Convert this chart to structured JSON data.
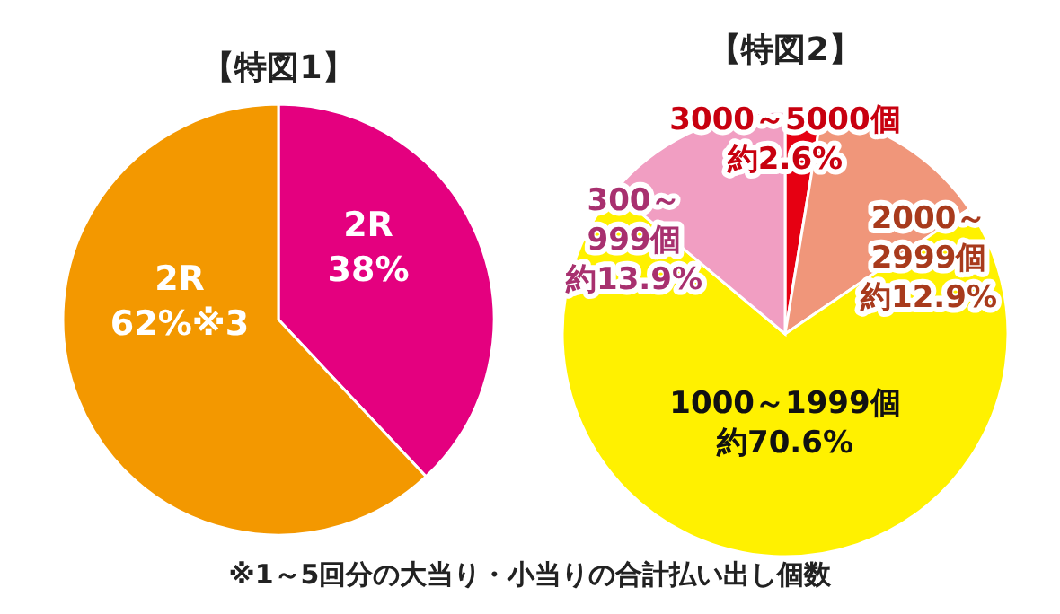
{
  "chart_data": [
    {
      "type": "pie",
      "title": "【特図1】",
      "categories": [
        "2R",
        "2R"
      ],
      "values": [
        38,
        62
      ],
      "colors": [
        "#e4007f",
        "#f39800"
      ],
      "value_labels": [
        "38%",
        "62%※3"
      ]
    },
    {
      "type": "pie",
      "title": "【特図2】",
      "categories": [
        "3000～5000個",
        "2000～2999個",
        "1000～1999個",
        "300～999個"
      ],
      "values": [
        2.6,
        12.9,
        70.6,
        13.9
      ],
      "colors": [
        "#e60012",
        "#f0967a",
        "#fff100",
        "#f19ec2"
      ],
      "value_labels": [
        "約2.6%",
        "約12.9%",
        "約70.6%",
        "約13.9%"
      ],
      "annotations": [
        "※1～5回分の大当り・小当りの合計払い出し個数"
      ]
    }
  ]
}
